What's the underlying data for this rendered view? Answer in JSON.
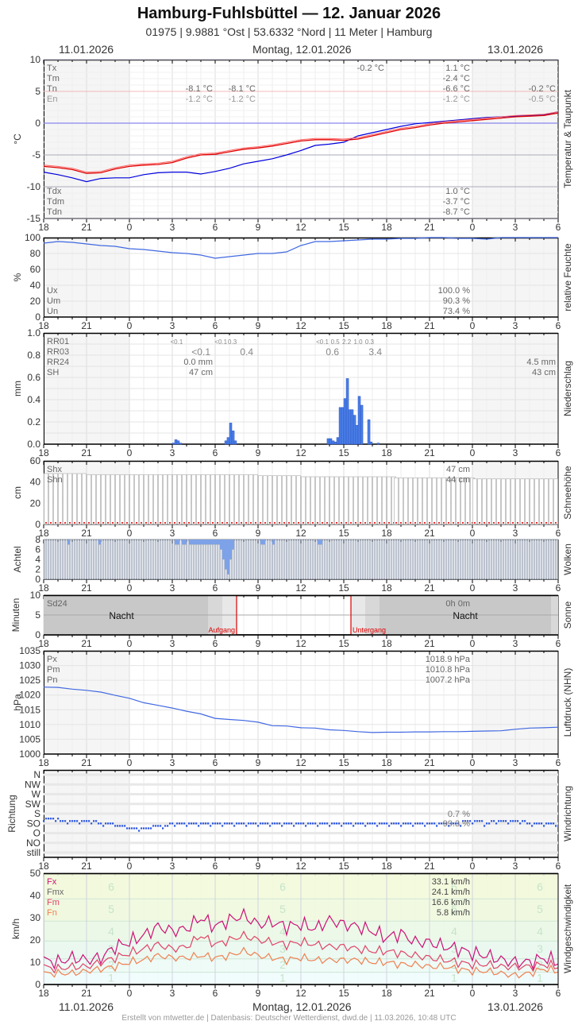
{
  "header": {
    "title": "Hamburg-Fuhlsbüttel  —  12. Januar 2026",
    "subtitle": "01975  |  9.9881 °Ost  |  53.6332 °Nord  |  11 Meter  |  Hamburg",
    "date_left": "11.01.2026",
    "date_center": "Montag, 12.01.2026",
    "date_right": "13.01.2026"
  },
  "footer": {
    "credit": "Erstellt von mtwetter.de | Datenbasis: Deutscher Wetterdienst, dwd.de | 11.03.2026, 10:48 UTC"
  },
  "x_ticks": [
    "18",
    "21",
    "0",
    "3",
    "6",
    "9",
    "12",
    "15",
    "18",
    "21",
    "0",
    "3",
    "6"
  ],
  "colors": {
    "temp": "#e00000",
    "dew": "#0000dd",
    "humidity": "#4169e1",
    "precip": "#4a7fe8",
    "pressure": "#4169e1",
    "wind_dir": "#2a55e0",
    "fx": "#cc1177",
    "fm": "#e04466",
    "fn": "#f08050",
    "sun_line": "#dd0000"
  },
  "chart_data": [
    {
      "id": "temperature",
      "type": "line",
      "title": "Temperatur & Taupunkt",
      "ylabel": "°C",
      "ylim": [
        -15,
        10
      ],
      "yticks": [
        "10",
        "5",
        "0",
        "-5",
        "-10",
        "-15"
      ],
      "x": [
        0,
        1,
        2,
        3,
        4,
        5,
        6,
        7,
        8,
        9,
        10,
        11,
        12,
        13,
        14,
        15,
        16,
        17,
        18,
        19,
        20,
        21,
        22,
        23,
        24,
        25,
        26,
        27,
        28,
        29,
        30,
        31,
        32,
        33,
        34,
        35,
        36
      ],
      "series": [
        {
          "name": "Temperatur",
          "values": [
            -6.8,
            -7.0,
            -7.3,
            -7.9,
            -7.8,
            -7.2,
            -6.8,
            -6.6,
            -6.5,
            -6.2,
            -5.5,
            -5.0,
            -4.9,
            -4.5,
            -4.1,
            -3.9,
            -3.6,
            -3.2,
            -2.8,
            -2.6,
            -2.6,
            -2.7,
            -2.5,
            -2.0,
            -1.5,
            -1.0,
            -0.7,
            -0.3,
            0.0,
            0.2,
            0.4,
            0.6,
            0.8,
            1.0,
            1.1,
            1.2,
            1.6
          ]
        },
        {
          "name": "Taupunkt",
          "values": [
            -7.7,
            -8.1,
            -8.6,
            -9.2,
            -8.7,
            -8.6,
            -8.6,
            -8.1,
            -7.8,
            -7.7,
            -7.7,
            -8.0,
            -7.6,
            -7.1,
            -6.4,
            -6.0,
            -5.6,
            -5.0,
            -4.3,
            -3.5,
            -3.3,
            -3.0,
            -2.0,
            -1.5,
            -1.0,
            -0.5,
            -0.1,
            0.1,
            0.3,
            0.5,
            0.7,
            0.9,
            1.0,
            1.1,
            1.2,
            1.3,
            1.8
          ]
        }
      ],
      "stats_left": [
        {
          "label": "Tx",
          "v1": "",
          "v2": ""
        },
        {
          "label": "Tm",
          "v1": "",
          "v2": ""
        },
        {
          "label": "Tn",
          "v1": "-8.1 °C",
          "v2": "-8.1 °C"
        },
        {
          "label": "En",
          "v1": "-1.2 °C",
          "v2": "-1.2 °C"
        }
      ],
      "stats_mid": {
        "tx_partial": "-0.2 °C"
      },
      "stats_day": [
        "1.1 °C",
        "-2.4 °C",
        "-6.6 °C",
        "-1.2 °C"
      ],
      "stats_next": {
        "tn": "-0.2 °C",
        "en": "-0.5 °C"
      },
      "dew_labels": [
        "Tdx",
        "Tdm",
        "Tdn"
      ],
      "dew_values": [
        "1.0 °C",
        "-3.7 °C",
        "-8.7 °C"
      ]
    },
    {
      "id": "humidity",
      "type": "line",
      "title": "relative Feuchte",
      "ylabel": "%",
      "ylim": [
        0,
        100
      ],
      "yticks": [
        "100",
        "80",
        "60",
        "40",
        "20",
        "0"
      ],
      "x": [
        0,
        1,
        2,
        3,
        4,
        5,
        6,
        7,
        8,
        9,
        10,
        11,
        12,
        13,
        14,
        15,
        16,
        17,
        18,
        19,
        20,
        21,
        22,
        23,
        24,
        25,
        26,
        27,
        28,
        29,
        30,
        31,
        32,
        33,
        34,
        35,
        36
      ],
      "values": [
        93,
        95,
        94,
        92,
        90,
        89,
        86,
        85,
        83,
        81,
        80,
        78,
        74,
        76,
        78,
        80,
        80,
        82,
        90,
        95,
        95,
        96,
        97,
        98,
        98,
        99,
        99,
        100,
        100,
        99,
        99,
        98,
        100,
        100,
        100,
        100,
        100
      ],
      "stats": [
        {
          "label": "Ux",
          "value": "100.0 %"
        },
        {
          "label": "Um",
          "value": "90.3 %"
        },
        {
          "label": "Un",
          "value": "73.4 %"
        }
      ]
    },
    {
      "id": "precipitation",
      "type": "bar",
      "title": "Niederschlag",
      "ylabel": "mm",
      "ylim": [
        0,
        1.0
      ],
      "yticks": [
        "1.0",
        "0.8",
        "0.6",
        "0.4",
        "0.2",
        "0.0"
      ],
      "bars": [
        {
          "x": 9.0,
          "v": 0.01
        },
        {
          "x": 9.17,
          "v": 0.04
        },
        {
          "x": 9.33,
          "v": 0.03
        },
        {
          "x": 9.5,
          "v": 0.01
        },
        {
          "x": 12.67,
          "v": 0.03
        },
        {
          "x": 12.83,
          "v": 0.06
        },
        {
          "x": 13.0,
          "v": 0.19
        },
        {
          "x": 13.17,
          "v": 0.12
        },
        {
          "x": 13.33,
          "v": 0.03
        },
        {
          "x": 19.83,
          "v": 0.05
        },
        {
          "x": 20.0,
          "v": 0.05
        },
        {
          "x": 20.17,
          "v": 0.03
        },
        {
          "x": 20.33,
          "v": 0.02
        },
        {
          "x": 20.5,
          "v": 0.06
        },
        {
          "x": 20.67,
          "v": 0.33
        },
        {
          "x": 20.83,
          "v": 0.33
        },
        {
          "x": 21.0,
          "v": 0.41
        },
        {
          "x": 21.17,
          "v": 0.59
        },
        {
          "x": 21.33,
          "v": 0.31
        },
        {
          "x": 21.5,
          "v": 0.31
        },
        {
          "x": 21.67,
          "v": 0.26
        },
        {
          "x": 21.83,
          "v": 0.17
        },
        {
          "x": 22.0,
          "v": 0.43
        },
        {
          "x": 22.17,
          "v": 0.35
        },
        {
          "x": 22.67,
          "v": 0.22
        },
        {
          "x": 22.83,
          "v": 0.02
        },
        {
          "x": 23.33,
          "v": 0.01
        }
      ],
      "row_labels": [
        "RR01",
        "RR03",
        "RR24",
        "SH"
      ],
      "rr01": [
        {
          "x": 9.3,
          "t": "<0.1"
        },
        {
          "x": 12.4,
          "t": "<0.1"
        },
        {
          "x": 13.2,
          "t": "0.3"
        },
        {
          "x": 19.5,
          "t": "<0.1"
        },
        {
          "x": 20.4,
          "t": "0.5"
        },
        {
          "x": 21.2,
          "t": "2.2"
        },
        {
          "x": 22.0,
          "t": "1.0"
        },
        {
          "x": 22.8,
          "t": "0.3"
        }
      ],
      "rr03": [
        {
          "x": 12.0,
          "t": "<0.1"
        },
        {
          "x": 15.0,
          "t": "0.4"
        },
        {
          "x": 21.0,
          "t": "0.6"
        },
        {
          "x": 24.0,
          "t": "3.4"
        }
      ],
      "rr24_left": "0.0 mm",
      "sh_left": "47 cm",
      "rr24_right": "4.5 mm",
      "sh_right": "43 cm"
    },
    {
      "id": "snow",
      "type": "bar",
      "title": "Schneehöhe",
      "ylabel": "cm",
      "ylim": [
        0,
        60
      ],
      "yticks": [
        "60",
        "40",
        "20",
        "0"
      ],
      "segments": [
        {
          "from": 0,
          "to": 3,
          "v": 48
        },
        {
          "from": 3,
          "to": 15,
          "v": 47
        },
        {
          "from": 15,
          "to": 18,
          "v": 46
        },
        {
          "from": 18,
          "to": 24.5,
          "v": 45
        },
        {
          "from": 24.5,
          "to": 30,
          "v": 44
        },
        {
          "from": 30,
          "to": 36,
          "v": 43
        }
      ],
      "stats": [
        {
          "label": "Shx",
          "value": "47 cm"
        },
        {
          "label": "Shn",
          "value": "44 cm"
        }
      ]
    },
    {
      "id": "clouds",
      "type": "bar",
      "title": "Wolken",
      "ylabel": "Achtel",
      "ylim": [
        0,
        8
      ],
      "yticks": [
        "8",
        "6",
        "4",
        "2",
        "0"
      ],
      "clear_gaps": [
        {
          "x": 1.67,
          "v": 7
        },
        {
          "x": 3.83,
          "v": 7
        },
        {
          "x": 9.17,
          "v": 7
        },
        {
          "x": 9.33,
          "v": 7
        },
        {
          "x": 9.67,
          "v": 7
        },
        {
          "x": 9.83,
          "v": 7
        },
        {
          "x": 10.17,
          "v": 7
        },
        {
          "x": 10.33,
          "v": 7
        },
        {
          "x": 10.5,
          "v": 7
        },
        {
          "x": 10.67,
          "v": 7
        },
        {
          "x": 10.83,
          "v": 7
        },
        {
          "x": 11.0,
          "v": 7
        },
        {
          "x": 11.17,
          "v": 7
        },
        {
          "x": 11.33,
          "v": 7
        },
        {
          "x": 11.5,
          "v": 7
        },
        {
          "x": 11.67,
          "v": 7
        },
        {
          "x": 11.83,
          "v": 7
        },
        {
          "x": 12.0,
          "v": 7
        },
        {
          "x": 12.17,
          "v": 7
        },
        {
          "x": 12.33,
          "v": 6
        },
        {
          "x": 12.5,
          "v": 4
        },
        {
          "x": 12.67,
          "v": 2
        },
        {
          "x": 12.83,
          "v": 1
        },
        {
          "x": 13.0,
          "v": 4
        },
        {
          "x": 13.17,
          "v": 6
        },
        {
          "x": 15.17,
          "v": 7
        },
        {
          "x": 15.33,
          "v": 7
        },
        {
          "x": 16.0,
          "v": 7
        },
        {
          "x": 19.17,
          "v": 7
        },
        {
          "x": 19.33,
          "v": 7
        }
      ]
    },
    {
      "id": "sunshine",
      "type": "bar",
      "title": "Sonne",
      "ylabel": "Minuten",
      "ylim": [
        0,
        10
      ],
      "yticks": [
        "10",
        "5",
        "0"
      ],
      "label": "Sd24",
      "value": "0h 0m",
      "night_label": "Nacht",
      "sunrise_x": 13.5,
      "sunset_x": 21.5,
      "sunrise_label": "Aufgang",
      "sunset_label": "Untergang"
    },
    {
      "id": "pressure",
      "type": "line",
      "title": "Luftdruck (NHN)",
      "ylabel": "hPa",
      "ylim": [
        1000,
        1035
      ],
      "yticks": [
        "1035",
        "1030",
        "1025",
        "1020",
        "1015",
        "1010",
        "1005",
        "1000"
      ],
      "x": [
        0,
        1,
        2,
        3,
        4,
        5,
        6,
        7,
        8,
        9,
        10,
        11,
        12,
        13,
        14,
        15,
        16,
        17,
        18,
        19,
        20,
        21,
        22,
        23,
        24,
        25,
        26,
        27,
        28,
        29,
        30,
        31,
        32,
        33,
        34,
        35,
        36
      ],
      "values": [
        1022.7,
        1022.6,
        1022.0,
        1021.6,
        1021.0,
        1019.9,
        1018.9,
        1017.4,
        1016.5,
        1015.6,
        1014.5,
        1013.6,
        1012.1,
        1011.7,
        1011.4,
        1010.8,
        1009.6,
        1009.5,
        1008.9,
        1008.8,
        1008.2,
        1008.0,
        1007.6,
        1007.3,
        1007.4,
        1007.4,
        1007.5,
        1007.5,
        1007.6,
        1007.6,
        1007.7,
        1007.8,
        1007.9,
        1008.4,
        1008.8,
        1008.9,
        1009.1
      ],
      "stats": [
        {
          "label": "Px",
          "value": "1018.9 hPa"
        },
        {
          "label": "Pm",
          "value": "1010.8 hPa"
        },
        {
          "label": "Pn",
          "value": "1007.2 hPa"
        }
      ]
    },
    {
      "id": "wind_direction",
      "type": "scatter",
      "title": "Windrichtung",
      "ylabel": "Richtung",
      "ycats": [
        "N",
        "NW",
        "W",
        "SW",
        "S",
        "SO",
        "O",
        "NO",
        "still"
      ],
      "values_SO": [
        4.4,
        4.6,
        4.8,
        4.8,
        4.9,
        5.1,
        5.4,
        5.5,
        5.2,
        5.1,
        5.0,
        5.0,
        4.9,
        4.9,
        5.0,
        5.0,
        5.0,
        5.0,
        5.0,
        5.0,
        5.0,
        5.1,
        5.0,
        5.0,
        5.0,
        5.0,
        5.0,
        5.0,
        4.9,
        4.9,
        4.8,
        4.9,
        4.8,
        4.8,
        4.9,
        4.9,
        4.9
      ],
      "stats": [
        {
          "label": "S",
          "value": "0.7 %"
        },
        {
          "label": "SO",
          "value": "99.3 %"
        }
      ]
    },
    {
      "id": "wind_speed",
      "type": "line",
      "title": "Windgeschwindigkeit",
      "ylabel": "km/h",
      "ylim": [
        0,
        50
      ],
      "yticks": [
        "50",
        "40",
        "30",
        "20",
        "10",
        "0"
      ],
      "x": [
        0,
        1,
        2,
        3,
        4,
        5,
        6,
        7,
        8,
        9,
        10,
        11,
        12,
        13,
        14,
        15,
        16,
        17,
        18,
        19,
        20,
        21,
        22,
        23,
        24,
        25,
        26,
        27,
        28,
        29,
        30,
        31,
        32,
        33,
        34,
        35,
        36
      ],
      "series": [
        {
          "name": "Fx",
          "values": [
            11,
            10,
            12,
            11,
            12,
            17,
            19,
            22,
            26,
            24,
            25,
            30,
            26,
            29,
            31,
            27,
            28,
            26,
            27,
            25,
            29,
            27,
            26,
            24,
            21,
            23,
            19,
            19,
            17,
            16,
            14,
            13,
            11,
            10,
            10,
            12,
            10
          ]
        },
        {
          "name": "Fm",
          "values": [
            8,
            7,
            8,
            8,
            10,
            12,
            14,
            16,
            18,
            16,
            17,
            22,
            18,
            20,
            22,
            20,
            19,
            18,
            19,
            18,
            17,
            17,
            16,
            15,
            15,
            14,
            13,
            12,
            11,
            10,
            9,
            9,
            8,
            8,
            8,
            9,
            8
          ]
        },
        {
          "name": "Fn",
          "values": [
            5,
            5,
            5,
            6,
            7,
            8,
            10,
            11,
            13,
            12,
            12,
            13,
            12,
            13,
            15,
            13,
            12,
            11,
            12,
            11,
            11,
            11,
            11,
            10,
            10,
            9,
            9,
            8,
            8,
            7,
            6,
            6,
            5,
            4,
            5,
            7,
            6
          ]
        }
      ],
      "beaufort": [
        {
          "label": "6",
          "y": 44
        },
        {
          "label": "5",
          "y": 34
        },
        {
          "label": "4",
          "y": 24
        },
        {
          "label": "3",
          "y": 16
        },
        {
          "label": "2",
          "y": 9
        },
        {
          "label": "1",
          "y": 3
        }
      ],
      "stats": [
        {
          "label": "Fx",
          "value": "33.1 km/h"
        },
        {
          "label": "Fmx",
          "value": "24.1 km/h"
        },
        {
          "label": "Fm",
          "value": "16.6 km/h"
        },
        {
          "label": "Fn",
          "value": "5.8 km/h"
        }
      ]
    }
  ]
}
